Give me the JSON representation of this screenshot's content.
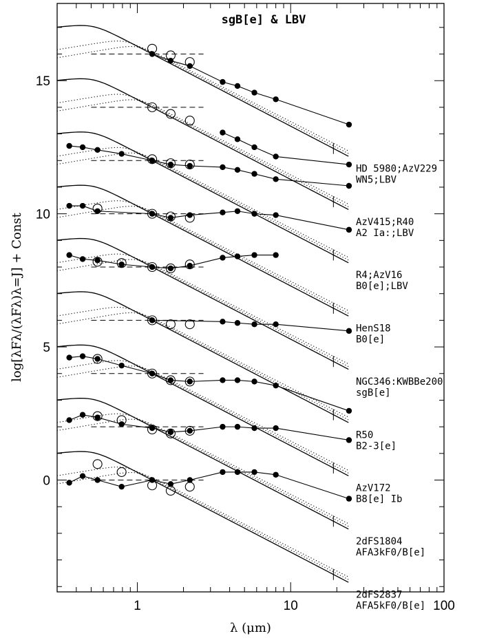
{
  "chart_data": {
    "type": "line",
    "title": "sgB[e] & LBV",
    "xlabel": "λ (μm)",
    "ylabel": "log[λFλ/(λFλ)λ=J] + Const",
    "xscale": "log",
    "xlim": [
      0.3,
      100
    ],
    "ylim": [
      -4.2,
      17.9
    ],
    "xticks": [
      {
        "v": 1,
        "label": "1"
      },
      {
        "v": 10,
        "label": "10"
      },
      {
        "v": 100,
        "label": "100"
      }
    ],
    "yticks": [
      {
        "v": 0,
        "label": "0"
      },
      {
        "v": 5,
        "label": "5"
      },
      {
        "v": 10,
        "label": "10"
      },
      {
        "v": 15,
        "label": "15"
      }
    ],
    "grid": false,
    "series": [
      {
        "name": "HD 5980;AzV229",
        "spectral_type": "WN5;LBV",
        "offset": 16,
        "filled": [
          [
            1.25,
            16.0
          ],
          [
            1.65,
            15.75
          ],
          [
            2.2,
            15.55
          ],
          [
            3.6,
            14.95
          ],
          [
            4.5,
            14.8
          ],
          [
            5.8,
            14.55
          ],
          [
            8.0,
            14.3
          ],
          [
            24,
            13.35
          ]
        ],
        "open": [
          [
            1.25,
            16.2
          ],
          [
            1.65,
            15.95
          ],
          [
            2.2,
            15.7
          ]
        ]
      },
      {
        "name": "AzV415;R40",
        "spectral_type": "A2 Ia:;LBV",
        "offset": 14,
        "filled": [
          [
            3.6,
            13.05
          ],
          [
            4.5,
            12.8
          ],
          [
            5.8,
            12.5
          ],
          [
            8.0,
            12.15
          ],
          [
            24,
            11.85
          ]
        ],
        "open": [
          [
            1.25,
            14.0
          ],
          [
            1.65,
            13.75
          ],
          [
            2.2,
            13.5
          ]
        ]
      },
      {
        "name": "R4;AzV16",
        "spectral_type": "B0[e];LBV",
        "offset": 12,
        "filled": [
          [
            0.36,
            12.55
          ],
          [
            0.44,
            12.5
          ],
          [
            0.55,
            12.4
          ],
          [
            0.79,
            12.25
          ],
          [
            1.25,
            12.0
          ],
          [
            1.65,
            11.85
          ],
          [
            2.2,
            11.8
          ],
          [
            3.6,
            11.75
          ],
          [
            4.5,
            11.65
          ],
          [
            5.8,
            11.5
          ],
          [
            8.0,
            11.3
          ],
          [
            24,
            11.05
          ]
        ],
        "open": [
          [
            1.25,
            12.05
          ],
          [
            1.65,
            11.9
          ],
          [
            2.2,
            11.85
          ]
        ]
      },
      {
        "name": "HenS18",
        "spectral_type": "B0[e]",
        "offset": 10,
        "filled": [
          [
            0.36,
            10.3
          ],
          [
            0.44,
            10.3
          ],
          [
            0.55,
            10.1
          ],
          [
            1.25,
            10.0
          ],
          [
            1.65,
            9.85
          ],
          [
            2.2,
            9.95
          ],
          [
            3.6,
            10.05
          ],
          [
            4.5,
            10.1
          ],
          [
            5.8,
            10.0
          ],
          [
            8.0,
            9.95
          ],
          [
            24,
            9.4
          ]
        ],
        "open": [
          [
            0.55,
            10.2
          ],
          [
            1.25,
            10.0
          ],
          [
            1.65,
            9.9
          ],
          [
            2.2,
            9.85
          ]
        ]
      },
      {
        "name": "NGC346:KWBBe200",
        "spectral_type": "sgB[e]",
        "offset": 8,
        "filled": [
          [
            0.36,
            8.45
          ],
          [
            0.44,
            8.3
          ],
          [
            0.55,
            8.25
          ],
          [
            0.79,
            8.1
          ],
          [
            1.25,
            8.0
          ],
          [
            1.65,
            7.95
          ],
          [
            2.2,
            8.05
          ],
          [
            3.6,
            8.35
          ],
          [
            4.5,
            8.4
          ],
          [
            5.8,
            8.45
          ],
          [
            8.0,
            8.45
          ]
        ],
        "open": [
          [
            0.55,
            8.2
          ],
          [
            0.79,
            8.15
          ],
          [
            1.25,
            8.0
          ],
          [
            1.65,
            7.95
          ],
          [
            2.2,
            8.1
          ]
        ]
      },
      {
        "name": "R50",
        "spectral_type": "B2-3[e]",
        "offset": 6,
        "filled": [
          [
            1.25,
            6.0
          ],
          [
            3.6,
            5.95
          ],
          [
            4.5,
            5.9
          ],
          [
            5.8,
            5.85
          ],
          [
            8.0,
            5.85
          ],
          [
            24,
            5.6
          ]
        ],
        "open": [
          [
            1.25,
            6.0
          ],
          [
            1.65,
            5.85
          ],
          [
            2.2,
            5.85
          ]
        ]
      },
      {
        "name": "AzV172",
        "spectral_type": "B8[e] Ib",
        "offset": 4,
        "filled": [
          [
            0.36,
            4.6
          ],
          [
            0.44,
            4.65
          ],
          [
            0.55,
            4.55
          ],
          [
            0.79,
            4.3
          ],
          [
            1.25,
            4.0
          ],
          [
            1.65,
            3.75
          ],
          [
            2.2,
            3.7
          ],
          [
            3.6,
            3.75
          ],
          [
            4.5,
            3.75
          ],
          [
            5.8,
            3.7
          ],
          [
            8.0,
            3.55
          ],
          [
            24,
            2.6
          ]
        ],
        "open": [
          [
            0.55,
            4.55
          ],
          [
            1.25,
            4.0
          ],
          [
            1.65,
            3.75
          ],
          [
            2.2,
            3.7
          ]
        ]
      },
      {
        "name": "2dFS1804",
        "spectral_type": "AFA3kF0/B[e]",
        "offset": 2,
        "filled": [
          [
            0.36,
            2.25
          ],
          [
            0.44,
            2.45
          ],
          [
            0.55,
            2.35
          ],
          [
            0.79,
            2.1
          ],
          [
            1.25,
            1.95
          ],
          [
            1.65,
            1.8
          ],
          [
            2.2,
            1.85
          ],
          [
            3.6,
            2.0
          ],
          [
            4.5,
            2.0
          ],
          [
            5.8,
            1.95
          ],
          [
            8.0,
            1.95
          ],
          [
            24,
            1.5
          ]
        ],
        "open": [
          [
            0.55,
            2.4
          ],
          [
            0.79,
            2.25
          ],
          [
            1.25,
            1.9
          ],
          [
            1.65,
            1.75
          ],
          [
            2.2,
            1.85
          ]
        ]
      },
      {
        "name": "2dFS2837",
        "spectral_type": "AFA5kF0/B[e]",
        "offset": 0,
        "filled": [
          [
            0.36,
            -0.1
          ],
          [
            0.44,
            0.15
          ],
          [
            0.55,
            0.0
          ],
          [
            0.79,
            -0.25
          ],
          [
            1.25,
            0.0
          ],
          [
            1.65,
            -0.15
          ],
          [
            2.2,
            0.0
          ],
          [
            3.6,
            0.3
          ],
          [
            4.5,
            0.3
          ],
          [
            5.8,
            0.3
          ],
          [
            8.0,
            0.2
          ],
          [
            24,
            -0.7
          ]
        ],
        "open": [
          [
            0.55,
            0.6
          ],
          [
            0.79,
            0.3
          ],
          [
            1.25,
            -0.2
          ],
          [
            1.65,
            -0.4
          ],
          [
            2.2,
            -0.25
          ]
        ]
      }
    ]
  }
}
